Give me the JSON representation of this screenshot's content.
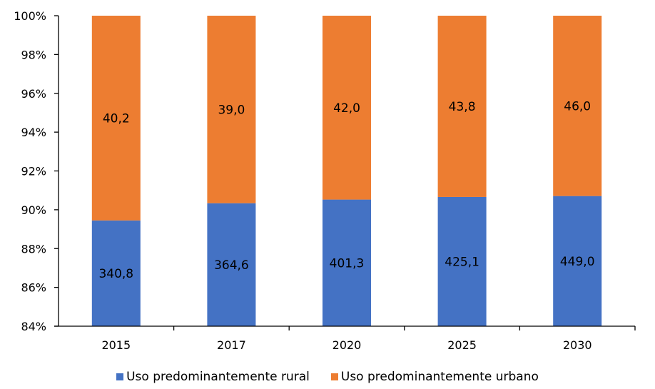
{
  "chart_data": {
    "type": "bar",
    "stacked": "percent",
    "categories": [
      "2015",
      "2017",
      "2020",
      "2025",
      "2030"
    ],
    "series": [
      {
        "name": "Uso predominantemente rural",
        "values": [
          340.8,
          364.6,
          401.3,
          425.1,
          449.0
        ],
        "labels": [
          "340,8",
          "364,6",
          "401,3",
          "425,1",
          "449,0"
        ],
        "color": "#4472C4"
      },
      {
        "name": "Uso predominantemente urbano",
        "values": [
          40.2,
          39.0,
          42.0,
          43.8,
          46.0
        ],
        "labels": [
          "40,2",
          "39,0",
          "42,0",
          "43,8",
          "46,0"
        ],
        "color": "#ED7D31"
      }
    ],
    "ylim": [
      84,
      100
    ],
    "yticks": [
      "84%",
      "86%",
      "88%",
      "90%",
      "92%",
      "94%",
      "96%",
      "98%",
      "100%"
    ],
    "ytick_values": [
      84,
      86,
      88,
      90,
      92,
      94,
      96,
      98,
      100
    ],
    "legend_position": "bottom",
    "grid": false,
    "title": "",
    "xlabel": "",
    "ylabel": ""
  }
}
